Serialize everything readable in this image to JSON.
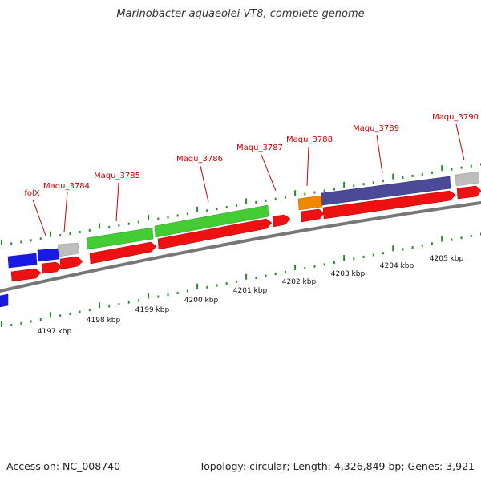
{
  "title": "Marinobacter aquaeolei VT8, complete genome",
  "accession": "Accession: NC_008740",
  "summary": "Topology: circular; Length: 4,326,849 bp; Genes: 3,921",
  "colors": {
    "backbone": "#7a7a7a",
    "cds": "#ee1111",
    "gene_blue": "#1a1ae6",
    "gene_green": "#44cc33",
    "gene_grey": "#bdbdbd",
    "gene_orange": "#ee8800",
    "gene_purple": "#4a4a99",
    "tick": "#2a8a2a",
    "label": "#cc0000"
  },
  "scale_labels": [
    "4197 kbp",
    "4198 kbp",
    "4199 kbp",
    "4200 kbp",
    "4201 kbp",
    "4202 kbp",
    "4203 kbp",
    "4204 kbp",
    "4205 kbp"
  ],
  "gene_labels": [
    "folX",
    "Maqu_3784",
    "Maqu_3785",
    "Maqu_3786",
    "Maqu_3787",
    "Maqu_3788",
    "Maqu_3789",
    "Maqu_3790"
  ]
}
